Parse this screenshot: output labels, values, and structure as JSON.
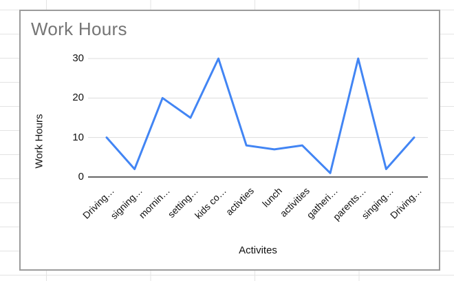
{
  "chart": {
    "title": "Work Hours",
    "x_axis_title": "Activites",
    "y_axis_title": "Work Hours"
  },
  "chart_data": {
    "type": "line",
    "title": "Work Hours",
    "xlabel": "Activites",
    "ylabel": "Work Hours",
    "categories": [
      "Driving…",
      "signing…",
      "mornin…",
      "setting…",
      "kids co…",
      "activties",
      "lunch",
      "activities",
      "gatheri…",
      "parents…",
      "singing…",
      "Driving…"
    ],
    "values": [
      10,
      2,
      20,
      15,
      30,
      8,
      7,
      8,
      1,
      30,
      2,
      10
    ],
    "yticks": [
      0,
      10,
      20,
      30
    ],
    "ylim": [
      0,
      30
    ],
    "grid": true,
    "legend": false,
    "line_color": "#4285f4",
    "gridline_color": "#dcdcdc",
    "axis_line_color": "#666666",
    "title_color": "#757575"
  }
}
